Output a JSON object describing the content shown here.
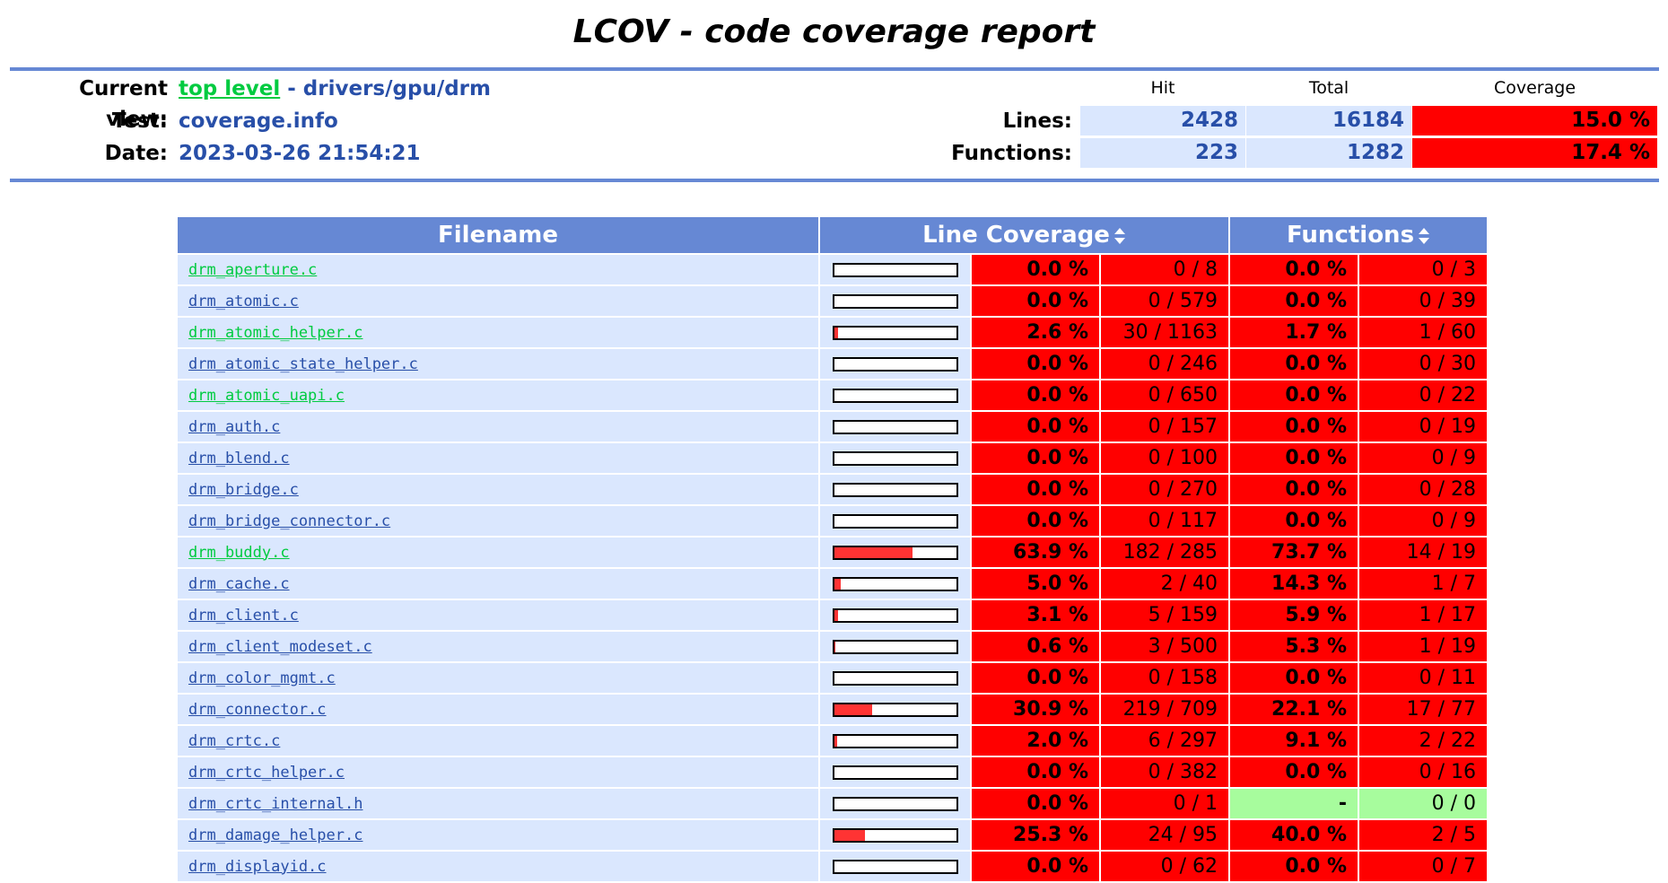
{
  "title": "LCOV - code coverage report",
  "colors": {
    "rule": "#6688d4",
    "link_green": "#00cb40",
    "link_blue": "#284fa8",
    "cell_bg": "#dae7fe",
    "low": "#ff0000",
    "none": "#a7fc9d",
    "bar": "#ff3333"
  },
  "header": {
    "current_view_label": "Current view:",
    "top_level_link": "top level",
    "separator": " - ",
    "path": "drivers/gpu/drm",
    "test_label": "Test:",
    "test_value": "coverage.info",
    "date_label": "Date:",
    "date_value": "2023-03-26 21:54:21",
    "col_hit": "Hit",
    "col_total": "Total",
    "col_coverage": "Coverage",
    "lines_label": "Lines:",
    "lines_hit": "2428",
    "lines_total": "16184",
    "lines_cov": "15.0 %",
    "functions_label": "Functions:",
    "functions_hit": "223",
    "functions_total": "1282",
    "functions_cov": "17.4 %"
  },
  "table": {
    "col_filename": "Filename",
    "col_line_coverage": "Line Coverage",
    "col_functions": "Functions",
    "sort_icon": "sort-up-down-icon",
    "rows": [
      {
        "name": "drm_aperture.c",
        "visited": true,
        "bar": 0.0,
        "line_pct": "0.0 %",
        "line_cnt": "0 / 8",
        "func_pct": "0.0 %",
        "func_cnt": "0 / 3"
      },
      {
        "name": "drm_atomic.c",
        "visited": false,
        "bar": 0.0,
        "line_pct": "0.0 %",
        "line_cnt": "0 / 579",
        "func_pct": "0.0 %",
        "func_cnt": "0 / 39"
      },
      {
        "name": "drm_atomic_helper.c",
        "visited": true,
        "bar": 2.6,
        "line_pct": "2.6 %",
        "line_cnt": "30 / 1163",
        "func_pct": "1.7 %",
        "func_cnt": "1 / 60"
      },
      {
        "name": "drm_atomic_state_helper.c",
        "visited": false,
        "bar": 0.0,
        "line_pct": "0.0 %",
        "line_cnt": "0 / 246",
        "func_pct": "0.0 %",
        "func_cnt": "0 / 30"
      },
      {
        "name": "drm_atomic_uapi.c",
        "visited": true,
        "bar": 0.0,
        "line_pct": "0.0 %",
        "line_cnt": "0 / 650",
        "func_pct": "0.0 %",
        "func_cnt": "0 / 22"
      },
      {
        "name": "drm_auth.c",
        "visited": false,
        "bar": 0.0,
        "line_pct": "0.0 %",
        "line_cnt": "0 / 157",
        "func_pct": "0.0 %",
        "func_cnt": "0 / 19"
      },
      {
        "name": "drm_blend.c",
        "visited": false,
        "bar": 0.0,
        "line_pct": "0.0 %",
        "line_cnt": "0 / 100",
        "func_pct": "0.0 %",
        "func_cnt": "0 / 9"
      },
      {
        "name": "drm_bridge.c",
        "visited": false,
        "bar": 0.0,
        "line_pct": "0.0 %",
        "line_cnt": "0 / 270",
        "func_pct": "0.0 %",
        "func_cnt": "0 / 28"
      },
      {
        "name": "drm_bridge_connector.c",
        "visited": false,
        "bar": 0.0,
        "line_pct": "0.0 %",
        "line_cnt": "0 / 117",
        "func_pct": "0.0 %",
        "func_cnt": "0 / 9"
      },
      {
        "name": "drm_buddy.c",
        "visited": true,
        "bar": 63.9,
        "line_pct": "63.9 %",
        "line_cnt": "182 / 285",
        "func_pct": "73.7 %",
        "func_cnt": "14 / 19"
      },
      {
        "name": "drm_cache.c",
        "visited": false,
        "bar": 5.0,
        "line_pct": "5.0 %",
        "line_cnt": "2 / 40",
        "func_pct": "14.3 %",
        "func_cnt": "1 / 7"
      },
      {
        "name": "drm_client.c",
        "visited": false,
        "bar": 3.1,
        "line_pct": "3.1 %",
        "line_cnt": "5 / 159",
        "func_pct": "5.9 %",
        "func_cnt": "1 / 17"
      },
      {
        "name": "drm_client_modeset.c",
        "visited": false,
        "bar": 0.6,
        "line_pct": "0.6 %",
        "line_cnt": "3 / 500",
        "func_pct": "5.3 %",
        "func_cnt": "1 / 19"
      },
      {
        "name": "drm_color_mgmt.c",
        "visited": false,
        "bar": 0.0,
        "line_pct": "0.0 %",
        "line_cnt": "0 / 158",
        "func_pct": "0.0 %",
        "func_cnt": "0 / 11"
      },
      {
        "name": "drm_connector.c",
        "visited": false,
        "bar": 30.9,
        "line_pct": "30.9 %",
        "line_cnt": "219 / 709",
        "func_pct": "22.1 %",
        "func_cnt": "17 / 77"
      },
      {
        "name": "drm_crtc.c",
        "visited": false,
        "bar": 2.0,
        "line_pct": "2.0 %",
        "line_cnt": "6 / 297",
        "func_pct": "9.1 %",
        "func_cnt": "2 / 22"
      },
      {
        "name": "drm_crtc_helper.c",
        "visited": false,
        "bar": 0.0,
        "line_pct": "0.0 %",
        "line_cnt": "0 / 382",
        "func_pct": "0.0 %",
        "func_cnt": "0 / 16"
      },
      {
        "name": "drm_crtc_internal.h",
        "visited": false,
        "bar": 0.0,
        "line_pct": "0.0 %",
        "line_cnt": "0 / 1",
        "func_pct": "-",
        "func_cnt": "0 / 0",
        "func_none": true
      },
      {
        "name": "drm_damage_helper.c",
        "visited": false,
        "bar": 25.3,
        "line_pct": "25.3 %",
        "line_cnt": "24 / 95",
        "func_pct": "40.0 %",
        "func_cnt": "2 / 5"
      },
      {
        "name": "drm_displayid.c",
        "visited": false,
        "bar": 0.0,
        "line_pct": "0.0 %",
        "line_cnt": "0 / 62",
        "func_pct": "0.0 %",
        "func_cnt": "0 / 7"
      }
    ]
  }
}
